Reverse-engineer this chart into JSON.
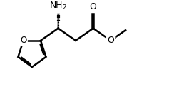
{
  "background_color": "#ffffff",
  "line_color": "#000000",
  "line_width": 1.8,
  "font_size": 8.5,
  "fig_width": 2.44,
  "fig_height": 1.22,
  "xlim": [
    0.0,
    8.5
  ],
  "ylim": [
    0.3,
    3.5
  ]
}
